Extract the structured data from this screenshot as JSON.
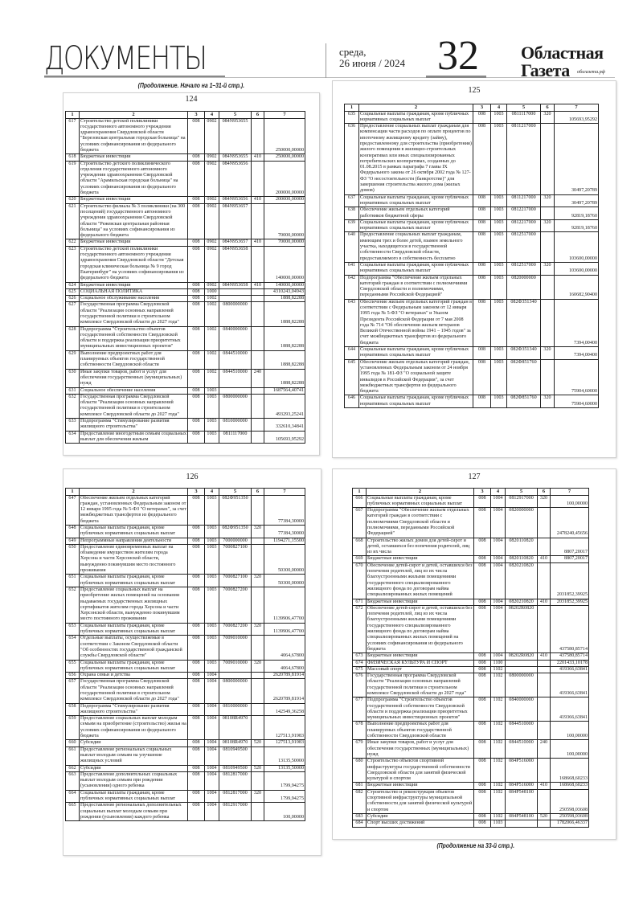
{
  "header": {
    "section_title": "ДОКУМЕНТЫ",
    "weekday": "среда,",
    "date": "26 июня / 2024",
    "page_number": "32",
    "brand_line1": "Областная",
    "brand_line2": "Газета",
    "brand_site": "облгазета.рф"
  },
  "continued_from": "(Продолжение. Начало на 1–31-й стр.).",
  "continued_on": "(Продолжение на 33-й стр.).",
  "column_headers": [
    "1",
    "2",
    "3",
    "4",
    "5",
    "6",
    "7"
  ],
  "pages": [
    {
      "title": "124",
      "rows": [
        [
          "617",
          "Строительство детской поликлиники государственного автономного учреждения здравоохранения Свердловской области \"Березовская центральная городская больница\" на условиях софинансирования из федерального бюджета",
          "008",
          "0902",
          "084N953655",
          "",
          "250000,00000"
        ],
        [
          "618",
          "Бюджетные инвестиции",
          "008",
          "0902",
          "084N953655",
          "410",
          "250000,00000"
        ],
        [
          "619",
          "Строительство детского поликлинического отделения государственного автономного учреждения здравоохранения Свердловской области \"Арамильская городская больница\" на условиях софинансирования из федерального бюджета",
          "008",
          "0902",
          "084N953656",
          "",
          "200000,00000"
        ],
        [
          "620",
          "Бюджетные инвестиции",
          "008",
          "0902",
          "084N953656",
          "410",
          "200000,00000"
        ],
        [
          "621",
          "Строительство филиала № 3 поликлиники (на 300 посещений) государственного автономного учреждения здравоохранения Свердловской области \"Режевская центральная районная больница\" на условиях софинансирования из федерального бюджета",
          "008",
          "0902",
          "084N953657",
          "",
          "70000,00000"
        ],
        [
          "622",
          "Бюджетные инвестиции",
          "008",
          "0902",
          "084N953657",
          "410",
          "70000,00000"
        ],
        [
          "623",
          "Строительство детской поликлиники государственного автономного учреждения здравоохранения Свердловской области \"Детская городская клиническая больница № 9 город Екатеринбург\" на условиях софинансирования из федерального бюджета",
          "008",
          "0902",
          "084N953658",
          "",
          "140000,00000"
        ],
        [
          "624",
          "Бюджетные инвестиции",
          "008",
          "0902",
          "084N953658",
          "410",
          "140000,00000"
        ],
        [
          "625",
          "СОЦИАЛЬНАЯ ПОЛИТИКА",
          "008",
          "1000",
          "",
          "",
          "4310243,04943"
        ],
        [
          "626",
          "Социальное обслуживание населения",
          "008",
          "1002",
          "",
          "",
          "1888,82288"
        ],
        [
          "627",
          "Государственная программа Свердловской области \"Реализация основных направлений государственной политики в строительном комплексе Свердловской области до 2027 года\"",
          "008",
          "1002",
          "0800000000",
          "",
          "1888,82288"
        ],
        [
          "628",
          "Подпрограмма \"Строительство объектов государственной собственности Свердловской области и поддержка реализации приоритетных муниципальных инвестиционных проектов\"",
          "008",
          "1002",
          "0840000000",
          "",
          "1888,82288"
        ],
        [
          "629",
          "Выполнение предпроектных работ для планируемых объектов государственной собственности Свердловской области",
          "008",
          "1002",
          "0844510000",
          "",
          "1888,82288"
        ],
        [
          "630",
          "Иные закупки товаров, работ и услуг для обеспечения государственных (муниципальных) нужд",
          "008",
          "1002",
          "0844510000",
          "240",
          "1888,82288"
        ],
        [
          "631",
          "Социальное обеспечение населения",
          "008",
          "1003",
          "",
          "",
          "1687564,40741"
        ],
        [
          "632",
          "Государственная программа Свердловской области \"Реализация основных направлений государственной политики в строительном комплексе Свердловской области до 2027 года\"",
          "008",
          "1003",
          "0800000000",
          "",
          "493293,25241"
        ],
        [
          "633",
          "Подпрограмма \"Стимулирование развития жилищного строительства\"",
          "008",
          "1003",
          "0810000000",
          "",
          "332610,34841"
        ],
        [
          "634",
          "Предоставление многодетным семьям социальных выплат для обеспечения жильем",
          "008",
          "1003",
          "0811117000",
          "",
          "105693,95292"
        ]
      ]
    },
    {
      "title": "125",
      "rows": [
        [
          "635",
          "Социальные выплаты гражданам, кроме публичных нормативных социальных выплат",
          "008",
          "1003",
          "0811117000",
          "320",
          "105693,95292"
        ],
        [
          "636",
          "Предоставление социальных выплат гражданам для компенсации части расходов по оплате процентов по ипотечному жилищному кредиту (займу), предоставленному для строительства (приобретения) жилого помещения в жилищно-строительных кооперативах или иных специализированных потребительских кооперативах, созданных до 01.08.2015 в рамках параграфа 7 главы IX Федерального закона от 26 октября 2002 года № 127-ФЗ \"О несостоятельности (банкротстве)\" для завершения строительства жилого дома (жилых домов)",
          "008",
          "1003",
          "0811217000",
          "",
          "30497,20789"
        ],
        [
          "637",
          "Социальные выплаты гражданам, кроме публичных нормативных социальных выплат",
          "008",
          "1003",
          "0811217000",
          "320",
          "30497,20789"
        ],
        [
          "638",
          "Обеспечение жильем отдельных категорий работников бюджетной сферы",
          "008",
          "1003",
          "0812217000",
          "",
          "92819,18760"
        ],
        [
          "639",
          "Социальные выплаты гражданам, кроме публичных нормативных социальных выплат",
          "008",
          "1003",
          "0812217000",
          "320",
          "92819,18760"
        ],
        [
          "640",
          "Предоставление социальных выплат гражданам, имеющим трех и более детей, взамен земельного участка, находящегося в государственной собственности Свердловской области, предоставляемого в собственность бесплатно",
          "008",
          "1003",
          "0812517000",
          "",
          "103600,00000"
        ],
        [
          "641",
          "Социальные выплаты гражданам, кроме публичных нормативных социальных выплат",
          "008",
          "1003",
          "0812517000",
          "320",
          "103600,00000"
        ],
        [
          "642",
          "Подпрограмма \"Обеспечение жильем отдельных категорий граждан в соответствии с полномочиями Свердловской области и полномочиями, переданными Российской Федерацией\"",
          "008",
          "1003",
          "0820000000",
          "",
          "160682,90400"
        ],
        [
          "643",
          "Обеспечение жильем отдельных категорий граждан в соответствии с Федеральным законом от 12 января 1995 года № 5-ФЗ \"О ветеранах\" и Указом Президента Российской Федерации от 7 мая 2008 года № 714 \"Об обеспечении жильем ветеранов Великой Отечественной войны 1941 – 1945 годов\" за счет межбюджетных трансфертов из федерального бюджета",
          "008",
          "1003",
          "082Ф351340",
          "",
          "7394,00400"
        ],
        [
          "644",
          "Социальные выплаты гражданам, кроме публичных нормативных социальных выплат",
          "008",
          "1003",
          "082Ф351340",
          "320",
          "7394,00400"
        ],
        [
          "645",
          "Обеспечение жильем отдельных категорий граждан, установленных Федеральным законом от 24 ноября 1995 года № 181-ФЗ \"О социальной защите инвалидов в Российской Федерации\", за счет межбюджетных трансфертов из федерального бюджета",
          "008",
          "1003",
          "082Ф851760",
          "",
          "75904,60000"
        ],
        [
          "646",
          "Социальные выплаты гражданам, кроме публичных нормативных социальных выплат",
          "008",
          "1003",
          "082Ф851760",
          "320",
          "75904,60000"
        ]
      ]
    },
    {
      "title": "126",
      "rows": [
        [
          "647",
          "Обеспечение жильем отдельных категорий граждан, установленных Федеральным законом от 12 января 1995 года № 5-ФЗ \"О ветеранах\", за счет межбюджетных трансфертов из федерального бюджета",
          "008",
          "1003",
          "082Ф951350",
          "",
          "77384,30000"
        ],
        [
          "648",
          "Социальные выплаты гражданам, кроме публичных нормативных социальных выплат",
          "008",
          "1003",
          "082Ф951350",
          "320",
          "77384,30000"
        ],
        [
          "649",
          "Непрограммные направления деятельности",
          "008",
          "1003",
          "7000000000",
          "",
          "1194271,15500"
        ],
        [
          "650",
          "Предоставление единовременных выплат на обзаведение имуществом жителям города Херсона и части Херсонской области, вынужденно покинувшим место постоянного проживания",
          "008",
          "1003",
          "7000827100",
          "",
          "50300,00000"
        ],
        [
          "651",
          "Социальные выплаты гражданам, кроме публичных нормативных социальных выплат",
          "008",
          "1003",
          "7000827100",
          "320",
          "50300,00000"
        ],
        [
          "652",
          "Предоставление социальных выплат на приобретение жилых помещений на основании выдаваемых государственных жилищных сертификатов жителям города Херсона и части Херсонской области, вынужденно покинувшим место постоянного проживания",
          "008",
          "1003",
          "7000827200",
          "",
          "1139906,47700"
        ],
        [
          "653",
          "Социальные выплаты гражданам, кроме публичных нормативных социальных выплат",
          "008",
          "1003",
          "7000827200",
          "320",
          "1139906,47700"
        ],
        [
          "654",
          "Отдельные выплаты, осуществляемые в соответствии с Законом Свердловской области \"Об особенностях государственной гражданской службы Свердловской области\"",
          "008",
          "1003",
          "7009010000",
          "",
          "4064,67800"
        ],
        [
          "655",
          "Социальные выплаты гражданам, кроме публичных нормативных социальных выплат",
          "008",
          "1003",
          "7009010000",
          "320",
          "4064,67800"
        ],
        [
          "656",
          "Охрана семьи и детства",
          "008",
          "1004",
          "",
          "",
          "2620789,81914"
        ],
        [
          "657",
          "Государственная программа Свердловской области \"Реализация основных направлений государственной политики в строительном комплексе Свердловской области до 2027 года\"",
          "008",
          "1004",
          "0800000000",
          "",
          "2620789,81914"
        ],
        [
          "658",
          "Подпрограмма \"Стимулирование развития жилищного строительства\"",
          "008",
          "1004",
          "0810000000",
          "",
          "142549,36258"
        ],
        [
          "659",
          "Предоставление социальных выплат молодым семьям на приобретение (строительство) жилья на условиях софинансирования из федерального бюджета",
          "008",
          "1004",
          "08108R4970",
          "",
          "127513,91983"
        ],
        [
          "660",
          "Субсидии",
          "008",
          "1004",
          "08108R4970",
          "520",
          "127513,91983"
        ],
        [
          "661",
          "Предоставление региональных социальных выплат молодым семьям на улучшение жилищных условий",
          "008",
          "1004",
          "0810949500",
          "",
          "13135,50000"
        ],
        [
          "662",
          "Субсидии",
          "008",
          "1004",
          "0810949500",
          "520",
          "13135,50000"
        ],
        [
          "663",
          "Предоставление дополнительных социальных выплат молодым семьям при рождении (усыновлении) одного ребенка",
          "008",
          "1004",
          "0812817000",
          "",
          "1799,94275"
        ],
        [
          "664",
          "Социальные выплаты гражданам, кроме публичных нормативных социальных выплат",
          "008",
          "1004",
          "0812817000",
          "320",
          "1799,94275"
        ],
        [
          "665",
          "Предоставление региональных дополнительных социальных выплат молодым семьям при рождении (усыновлении) каждого ребенка",
          "008",
          "1004",
          "0812917000",
          "",
          "100,00000"
        ]
      ]
    },
    {
      "title": "127",
      "rows": [
        [
          "666",
          "Социальные выплаты гражданам, кроме публичных нормативных социальных выплат",
          "008",
          "1004",
          "0812917000",
          "320",
          "100,00000"
        ],
        [
          "667",
          "Подпрограмма \"Обеспечение жильем отдельных категорий граждан в соответствии с полномочиями Свердловской области и полномочиями, переданными Российской Федерацией\"",
          "008",
          "1004",
          "0820000000",
          "",
          "2478240,45656"
        ],
        [
          "668",
          "Строительство жилых домов для детей-сирот и детей, оставшихся без попечения родителей, лиц из их числа",
          "008",
          "1004",
          "0820110820",
          "",
          "8807,20017"
        ],
        [
          "669",
          "Бюджетные инвестиции",
          "008",
          "1004",
          "0820110820",
          "410",
          "8807,20017"
        ],
        [
          "670",
          "Обеспечение детей-сирот и детей, оставшихся без попечения родителей, лиц из их числа благоустроенными жилыми помещениями государственного специализированного жилищного фонда по договорам найма специализированных жилых помещений",
          "008",
          "1004",
          "0820210820",
          "",
          "2031852,39925"
        ],
        [
          "671",
          "Бюджетные инвестиции",
          "008",
          "1004",
          "0820210820",
          "410",
          "2031852,39925"
        ],
        [
          "672",
          "Обеспечение детей-сирот и детей, оставшихся без попечения родителей, лиц из их числа благоустроенными жилыми помещениями государственного специализированного жилищного фонда по договорам найма специализированных жилых помещений на условиях софинансирования из федерального бюджета",
          "008",
          "1004",
          "08202R0820",
          "",
          "437580,85714"
        ],
        [
          "673",
          "Бюджетные инвестиции",
          "008",
          "1004",
          "08202R0820",
          "410",
          "437580,85714"
        ],
        [
          "674",
          "ФИЗИЧЕСКАЯ КУЛЬТУРА И СПОРТ",
          "008",
          "1100",
          "",
          "",
          "2201433,10178"
        ],
        [
          "675",
          "Массовый спорт",
          "008",
          "1102",
          "",
          "",
          "419366,63841"
        ],
        [
          "676",
          "Государственная программа Свердловской области \"Реализация основных направлений государственной политики в строительном комплексе Свердловской области до 2027 года\"",
          "008",
          "1102",
          "0800000000",
          "",
          "419366,63841"
        ],
        [
          "677",
          "Подпрограмма \"Строительство объектов государственной собственности Свердловской области и поддержка реализации приоритетных муниципальных инвестиционных проектов\"",
          "008",
          "1102",
          "0840000000",
          "",
          "419366,63841"
        ],
        [
          "678",
          "Выполнение предпроектных работ для планируемых объектов государственной собственности Свердловской области",
          "008",
          "1102",
          "0844510000",
          "",
          "100,00000"
        ],
        [
          "679",
          "Иные закупки товаров, работ и услуг для обеспечения государственных (муниципальных) нужд",
          "008",
          "1102",
          "0844510000",
          "240",
          "100,00000"
        ],
        [
          "680",
          "Строительство объектов спортивной инфраструктуры государственной собственности Свердловской области для занятий физической культурой и спортом",
          "008",
          "1102",
          "084P516000",
          "",
          "168668,60233"
        ],
        [
          "681",
          "Бюджетные инвестиции",
          "008",
          "1102",
          "084P516000",
          "410",
          "168668,60233"
        ],
        [
          "682",
          "Строительство и реконструкция объектов спортивной инфраструктуры муниципальной собственности для занятий физической культурой и спортом",
          "008",
          "1102",
          "084P548100",
          "",
          "250598,03608"
        ],
        [
          "683",
          "Субсидии",
          "008",
          "1102",
          "084P548100",
          "520",
          "250598,03608"
        ],
        [
          "684",
          "Спорт высших достижений",
          "008",
          "1103",
          "",
          "",
          "1782066,46337"
        ]
      ]
    }
  ]
}
